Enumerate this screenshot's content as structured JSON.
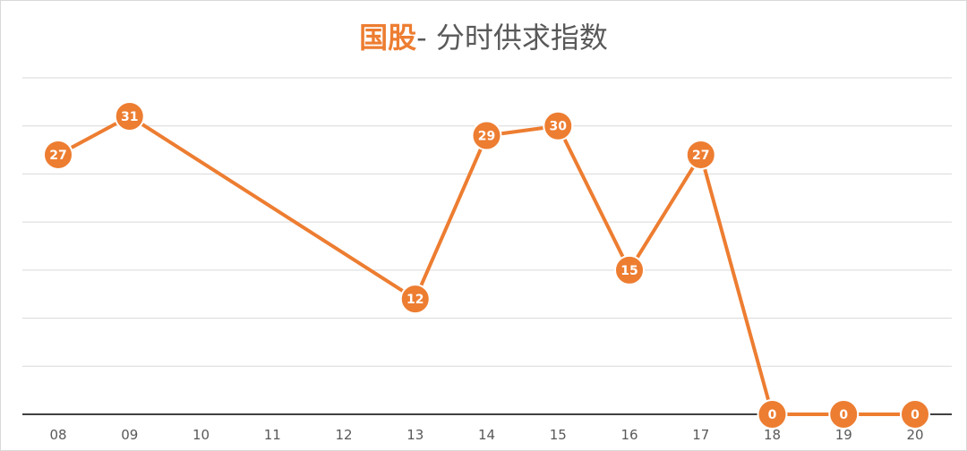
{
  "chart_data": {
    "type": "line",
    "title": {
      "highlight": "国股",
      "rest": "- 分时供求指数"
    },
    "categories": [
      "08",
      "09",
      "10",
      "11",
      "12",
      "13",
      "14",
      "15",
      "16",
      "17",
      "18",
      "19",
      "20"
    ],
    "series": [
      {
        "color": "#ED7D31",
        "points": [
          {
            "x": "08",
            "y": 27
          },
          {
            "x": "09",
            "y": 31
          },
          {
            "x": "13",
            "y": 12
          },
          {
            "x": "14",
            "y": 29
          },
          {
            "x": "15",
            "y": 30
          },
          {
            "x": "16",
            "y": 15
          },
          {
            "x": "17",
            "y": 27
          },
          {
            "x": "18",
            "y": 0
          },
          {
            "x": "19",
            "y": 0
          },
          {
            "x": "20",
            "y": 0
          }
        ]
      }
    ],
    "ylim": [
      0,
      35
    ],
    "y_gridline_step": 5,
    "grid": true,
    "legend": "none",
    "colors": {
      "series": "#ED7D31",
      "grid": "#d9d9d9",
      "axis": "#404040",
      "text": "#595959"
    }
  }
}
